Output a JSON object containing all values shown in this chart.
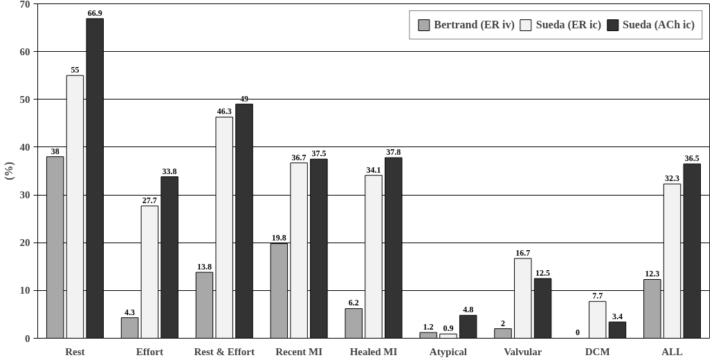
{
  "chart_data": {
    "type": "bar",
    "ylabel": "(%)",
    "categories": [
      "Rest",
      "Effort",
      "Rest & Effort",
      "Recent MI",
      "Healed MI",
      "Atypical",
      "Valvular",
      "DCM",
      "ALL"
    ],
    "series": [
      {
        "name": "Bertrand (ER iv)",
        "color": "#a8a8a8",
        "values": [
          38,
          4.3,
          13.8,
          19.8,
          6.2,
          1.2,
          2,
          0,
          12.3
        ]
      },
      {
        "name": "Sueda (ER ic)",
        "color": "#f2f2f2",
        "values": [
          55,
          27.7,
          46.3,
          36.7,
          34.1,
          0.9,
          16.7,
          7.7,
          32.3
        ]
      },
      {
        "name": "Sueda (ACh ic)",
        "color": "#333333",
        "values": [
          66.9,
          33.8,
          49,
          37.5,
          37.8,
          4.8,
          12.5,
          3.4,
          36.5
        ]
      }
    ],
    "ylim": [
      0,
      70
    ],
    "yticks": [
      0,
      10,
      20,
      30,
      40,
      50,
      60,
      70
    ],
    "grid": "y",
    "legend": "top right",
    "data_labels": true
  }
}
